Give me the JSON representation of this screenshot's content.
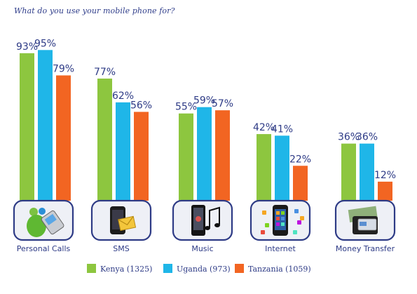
{
  "title": "What do you use your mobile phone for?",
  "colors": {
    "Kenya": "#8dc63f",
    "Uganda": "#1fb6e8",
    "Tanzania": "#f26522",
    "text": "#2e3b86",
    "frame": "#2e3b86"
  },
  "chart_data": {
    "type": "bar",
    "title": "What do you use your mobile phone for?",
    "categories": [
      "Personal Calls",
      "SMS",
      "Music",
      "Internet",
      "Money Transfer"
    ],
    "icons": [
      "messenger-phone-icon",
      "smartphone-mail-icon",
      "music-phone-icon",
      "apps-smartphone-icon",
      "wallet-money-icon"
    ],
    "series": [
      {
        "name": "Kenya (1325)",
        "values": [
          93,
          77,
          55,
          42,
          36
        ],
        "labels": [
          "93%",
          "77%",
          "55%",
          "42%",
          "36%"
        ]
      },
      {
        "name": "Uganda (973)",
        "values": [
          95,
          62,
          59,
          41,
          36
        ],
        "labels": [
          "95%",
          "62%",
          "59%",
          "41%",
          "36%"
        ]
      },
      {
        "name": "Tanzania (1059)",
        "values": [
          79,
          56,
          57,
          22,
          12
        ],
        "labels": [
          "79%",
          "56%",
          "57%",
          "22%",
          "12%"
        ]
      }
    ],
    "ylim": [
      0,
      100
    ],
    "grid": false,
    "legend": "bottom-center"
  }
}
